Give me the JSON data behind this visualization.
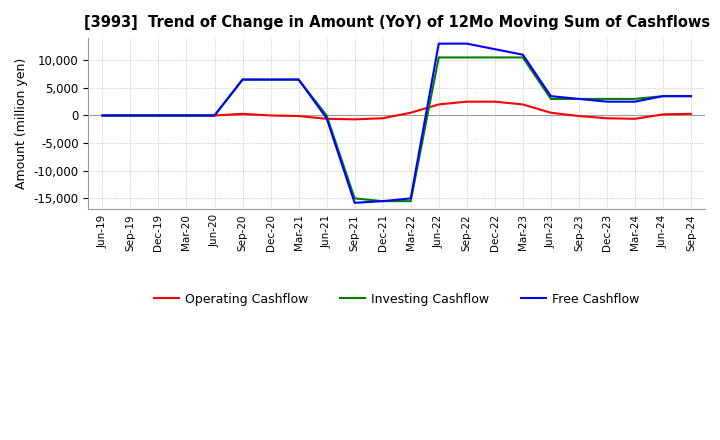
{
  "title": "[3993]  Trend of Change in Amount (YoY) of 12Mo Moving Sum of Cashflows",
  "ylabel": "Amount (million yen)",
  "ylim": [
    -17000,
    14000
  ],
  "yticks": [
    -15000,
    -10000,
    -5000,
    0,
    5000,
    10000
  ],
  "background_color": "#ffffff",
  "grid_color": "#aaaaaa",
  "x_labels": [
    "Jun-19",
    "Sep-19",
    "Dec-19",
    "Mar-20",
    "Jun-20",
    "Sep-20",
    "Dec-20",
    "Mar-21",
    "Jun-21",
    "Sep-21",
    "Dec-21",
    "Mar-22",
    "Jun-22",
    "Sep-22",
    "Dec-22",
    "Mar-23",
    "Jun-23",
    "Sep-23",
    "Dec-23",
    "Mar-24",
    "Jun-24",
    "Sep-24"
  ],
  "operating_cashflow": [
    0,
    0,
    0,
    0,
    0,
    300,
    0,
    -100,
    -600,
    -700,
    -500,
    500,
    2000,
    2500,
    2500,
    2000,
    500,
    -100,
    -500,
    -600,
    200,
    300
  ],
  "investing_cashflow": [
    0,
    0,
    0,
    0,
    0,
    6500,
    6500,
    6500,
    0,
    -15000,
    -15500,
    -15500,
    10500,
    10500,
    10500,
    10500,
    3000,
    3000,
    3000,
    3000,
    3500,
    3500
  ],
  "free_cashflow": [
    0,
    0,
    0,
    0,
    0,
    6500,
    6500,
    6500,
    -500,
    -15800,
    -15500,
    -15000,
    13000,
    13000,
    12000,
    11000,
    3500,
    3000,
    2500,
    2500,
    3500,
    3500
  ],
  "operating_color": "#ff0000",
  "investing_color": "#008000",
  "free_color": "#0000ff",
  "line_width": 1.5
}
